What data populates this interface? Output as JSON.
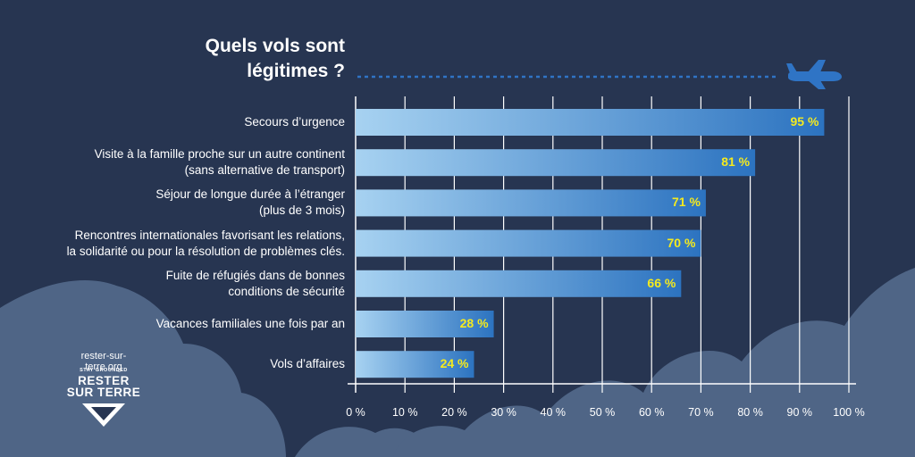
{
  "chart_data": {
    "type": "bar",
    "orientation": "horizontal",
    "title": [
      "Quels vols sont",
      "légitimes ?"
    ],
    "categories": [
      [
        "Secours d’urgence"
      ],
      [
        "Visite à la famille proche sur un autre continent",
        "(sans alternative de transport)"
      ],
      [
        "Séjour de longue durée à l’étranger",
        "(plus de 3 mois)"
      ],
      [
        "Rencontres internationales favorisant les relations,",
        "la solidarité ou pour la résolution de problèmes clés."
      ],
      [
        "Fuite de réfugiés dans de bonnes",
        "conditions de sécurité"
      ],
      [
        "Vacances familiales une fois par an"
      ],
      [
        "Vols d’affaires"
      ]
    ],
    "values": [
      95,
      81,
      71,
      70,
      66,
      28,
      24
    ],
    "value_labels": [
      "95 %",
      "81 %",
      "71 %",
      "70 %",
      "66 %",
      "28 %",
      "24 %"
    ],
    "xlim": [
      0,
      100
    ],
    "x_ticks": [
      0,
      10,
      20,
      30,
      40,
      50,
      60,
      70,
      80,
      90,
      100
    ],
    "x_tick_labels": [
      "0 %",
      "10 %",
      "20 %",
      "30 %",
      "40 %",
      "50 %",
      "60 %",
      "70 %",
      "80 %",
      "90 %",
      "100 %"
    ],
    "grid": true,
    "xlabel": "",
    "ylabel": ""
  },
  "brand": {
    "url": "rester-sur-terre.org",
    "tagline": "STAY GROUNDED",
    "name_line1": "RESTER",
    "name_line2": "SUR TERRE"
  },
  "colors": {
    "background": "#273551",
    "cloud": "#4f6586",
    "bar_start": "#a7d2f1",
    "bar_end": "#2c73c0",
    "value_label": "#f4ea1f",
    "grid": "#ffffff",
    "plane": "#2f74c5"
  },
  "icons": [
    "airplane-icon",
    "stay-grounded-logo-icon"
  ]
}
